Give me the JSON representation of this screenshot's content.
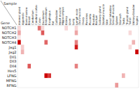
{
  "chart_data": {
    "type": "heatmap",
    "x_label": "Sample",
    "y_label": "Gene",
    "color_scale": [
      "#ffffff",
      "#cc0000"
    ],
    "color_range": [
      0.0,
      1.0
    ],
    "categories": [
      "Adrenal gland",
      "Appendix",
      "Bone marrow",
      "Breast",
      "Cerebellum",
      "Cerebral cortex",
      "Colon",
      "Duodenum",
      "Endometrium",
      "Esophagus",
      "Fat",
      "Gallbladder",
      "Heart muscle",
      "Hippocampus",
      "Kidney",
      "Liver",
      "Lung",
      "Lymph node",
      "Oral mucosa",
      "Ovary",
      "Pancreas",
      "Placenta",
      "Prostate",
      "Rectum",
      "Salivary gland",
      "Skeletal muscle",
      "Skin",
      "Small intestine",
      "Smooth muscle",
      "Spleen",
      "Stomach",
      "Testis",
      "Thyroid gland",
      "Tonsil",
      "Urinary bladder",
      "Vagina"
    ],
    "series": [
      {
        "name": "NOTCH1",
        "values": [
          0.15,
          0.0,
          0.0,
          0.0,
          0.0,
          0.0,
          0.55,
          0.15,
          0.0,
          0.0,
          0.0,
          0.0,
          0.0,
          0.0,
          0.15,
          0.0,
          0.0,
          0.15,
          0.0,
          0.0,
          0.0,
          0.0,
          0.0,
          0.0,
          0.0,
          0.0,
          0.0,
          0.0,
          0.0,
          0.0,
          0.0,
          0.0,
          0.0,
          0.0,
          0.0,
          0.0
        ]
      },
      {
        "name": "NOTCH2",
        "values": [
          0.35,
          0.0,
          0.0,
          0.0,
          0.0,
          0.0,
          0.0,
          0.65,
          0.0,
          0.0,
          0.0,
          0.0,
          0.0,
          0.0,
          0.0,
          0.0,
          0.0,
          0.35,
          0.0,
          0.0,
          0.0,
          0.0,
          0.0,
          0.0,
          0.0,
          0.0,
          0.0,
          0.0,
          0.0,
          0.0,
          0.0,
          0.0,
          0.0,
          0.15,
          0.0,
          0.0
        ]
      },
      {
        "name": "NOTCH3",
        "values": [
          0.1,
          0.0,
          0.0,
          0.0,
          0.0,
          0.0,
          0.0,
          0.0,
          0.0,
          0.0,
          0.0,
          0.0,
          0.0,
          0.0,
          0.0,
          0.0,
          0.0,
          0.0,
          0.0,
          0.0,
          0.0,
          0.0,
          0.0,
          0.0,
          0.0,
          0.0,
          0.0,
          0.0,
          0.0,
          0.0,
          0.0,
          0.0,
          0.0,
          0.0,
          0.0,
          0.0
        ]
      },
      {
        "name": "NOTCH4",
        "values": [
          1.0,
          0.0,
          0.0,
          0.0,
          0.0,
          0.0,
          0.0,
          0.0,
          0.6,
          0.0,
          0.0,
          0.0,
          0.0,
          0.0,
          0.0,
          0.0,
          0.0,
          0.5,
          0.0,
          0.0,
          0.0,
          0.0,
          0.0,
          0.0,
          0.0,
          0.0,
          0.0,
          0.0,
          0.0,
          0.0,
          0.0,
          0.0,
          0.0,
          0.0,
          0.3,
          0.0
        ]
      },
      {
        "name": "Jag1",
        "values": [
          0.0,
          0.2,
          0.0,
          0.0,
          0.0,
          0.0,
          0.0,
          0.0,
          0.0,
          0.0,
          0.0,
          0.0,
          0.0,
          0.0,
          0.0,
          0.0,
          0.0,
          0.9,
          0.0,
          0.0,
          0.0,
          0.0,
          0.0,
          0.0,
          0.0,
          0.0,
          0.0,
          0.0,
          0.0,
          0.0,
          0.0,
          0.0,
          0.0,
          0.15,
          0.0,
          0.0
        ]
      },
      {
        "name": "Jag2",
        "values": [
          0.0,
          0.3,
          0.0,
          0.0,
          0.0,
          0.0,
          0.0,
          0.0,
          0.0,
          0.0,
          0.0,
          0.0,
          0.0,
          0.0,
          0.0,
          0.0,
          0.0,
          0.0,
          0.0,
          0.0,
          0.0,
          0.0,
          0.0,
          0.0,
          0.0,
          0.0,
          0.0,
          0.0,
          0.0,
          0.0,
          0.0,
          0.0,
          0.0,
          0.0,
          0.0,
          1.0
        ]
      },
      {
        "name": "Dll1",
        "values": [
          0.0,
          0.0,
          0.0,
          0.0,
          0.0,
          0.0,
          0.0,
          0.0,
          0.0,
          0.0,
          0.0,
          0.0,
          0.0,
          0.0,
          0.0,
          0.0,
          0.0,
          0.0,
          0.0,
          0.0,
          0.0,
          0.0,
          0.0,
          0.0,
          0.0,
          0.0,
          0.0,
          0.0,
          0.0,
          0.0,
          0.0,
          0.0,
          0.0,
          0.0,
          0.0,
          0.0
        ]
      },
      {
        "name": "Dll3",
        "values": [
          0.0,
          0.0,
          0.0,
          0.0,
          0.0,
          0.0,
          0.0,
          0.0,
          0.0,
          0.0,
          0.0,
          0.0,
          0.0,
          0.0,
          0.0,
          0.0,
          0.0,
          0.0,
          0.0,
          0.0,
          0.0,
          0.0,
          0.0,
          0.0,
          0.0,
          0.0,
          0.0,
          0.0,
          0.0,
          0.0,
          0.0,
          0.0,
          0.0,
          0.0,
          0.0,
          0.0
        ]
      },
      {
        "name": "Dll4",
        "values": [
          0.0,
          0.0,
          0.0,
          0.65,
          0.0,
          0.0,
          0.0,
          0.0,
          0.0,
          0.0,
          0.0,
          0.0,
          0.0,
          0.0,
          0.0,
          0.0,
          0.0,
          0.5,
          0.0,
          0.0,
          0.0,
          0.0,
          0.0,
          0.0,
          0.0,
          0.0,
          0.0,
          0.0,
          0.0,
          0.0,
          0.0,
          0.0,
          0.0,
          0.0,
          0.0,
          0.0
        ]
      },
      {
        "name": "Hes5",
        "values": [
          0.0,
          0.0,
          0.0,
          0.0,
          0.0,
          0.0,
          0.0,
          0.0,
          0.0,
          0.0,
          0.0,
          0.0,
          0.0,
          0.0,
          0.0,
          0.0,
          0.0,
          0.0,
          0.0,
          0.0,
          0.0,
          0.0,
          0.0,
          0.0,
          0.0,
          0.0,
          0.0,
          0.0,
          0.0,
          0.0,
          0.0,
          0.0,
          0.0,
          0.0,
          0.0,
          0.0
        ]
      },
      {
        "name": "LFNG",
        "values": [
          0.0,
          0.0,
          0.0,
          0.0,
          0.0,
          0.0,
          0.0,
          0.0,
          1.0,
          0.8,
          0.0,
          0.0,
          0.0,
          0.0,
          0.0,
          0.0,
          0.0,
          0.0,
          0.0,
          0.0,
          0.0,
          0.0,
          0.0,
          0.0,
          0.0,
          0.0,
          0.0,
          0.0,
          0.0,
          0.0,
          0.0,
          0.3,
          0.0,
          0.0,
          0.0,
          0.0
        ]
      },
      {
        "name": "MFNG",
        "values": [
          0.0,
          0.0,
          0.0,
          0.0,
          0.0,
          0.0,
          0.0,
          0.0,
          0.0,
          0.0,
          0.0,
          0.0,
          0.0,
          0.0,
          0.0,
          0.0,
          0.0,
          0.0,
          0.0,
          0.0,
          0.0,
          0.0,
          0.0,
          0.0,
          0.0,
          0.0,
          0.0,
          0.0,
          0.0,
          0.0,
          0.0,
          0.0,
          0.0,
          0.0,
          0.0,
          0.0
        ]
      },
      {
        "name": "RFNG",
        "values": [
          0.0,
          0.0,
          0.0,
          0.0,
          0.0,
          0.0,
          0.0,
          0.0,
          0.0,
          0.0,
          0.0,
          0.0,
          0.0,
          0.0,
          0.0,
          0.0,
          0.0,
          0.0,
          0.0,
          0.0,
          0.0,
          0.0,
          0.0,
          0.0,
          0.0,
          0.0,
          0.0,
          0.0,
          0.0,
          0.4,
          0.0,
          0.0,
          0.0,
          0.0,
          0.0,
          0.0
        ]
      }
    ]
  }
}
